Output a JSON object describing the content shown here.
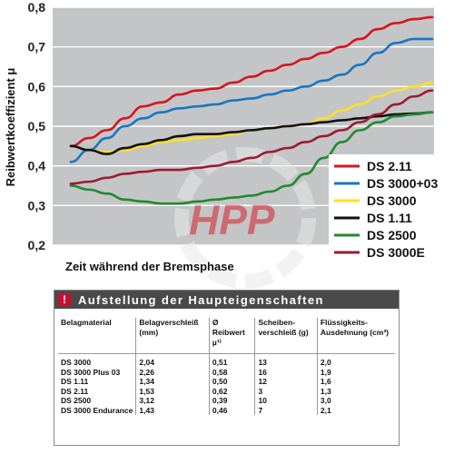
{
  "chart_data": {
    "type": "line",
    "title": "",
    "xlabel": "Zeit während der Bremsphase",
    "ylabel": "Reibwertkoeffizient μ",
    "ylim": [
      0.2,
      0.8
    ],
    "yticks": [
      "0,2",
      "0,3",
      "0,4",
      "0,5",
      "0,6",
      "0,7",
      "0,8"
    ],
    "x": [
      0,
      5,
      10,
      15,
      20,
      25,
      30,
      35,
      40,
      45,
      50,
      55,
      60,
      65,
      70,
      75,
      80,
      85,
      90,
      95,
      100
    ],
    "grid": "horizontal",
    "legend_position": "right",
    "series": [
      {
        "name": "DS 2.11",
        "color": "#d7141f",
        "values": [
          0.45,
          0.47,
          0.49,
          0.52,
          0.55,
          0.56,
          0.58,
          0.59,
          0.595,
          0.61,
          0.625,
          0.64,
          0.655,
          0.67,
          0.685,
          0.7,
          0.72,
          0.745,
          0.76,
          0.77,
          0.775
        ]
      },
      {
        "name": "DS 3000+03",
        "color": "#1a75c0",
        "values": [
          0.41,
          0.44,
          0.47,
          0.5,
          0.52,
          0.535,
          0.545,
          0.55,
          0.555,
          0.565,
          0.57,
          0.58,
          0.59,
          0.6,
          0.615,
          0.63,
          0.655,
          0.685,
          0.71,
          0.72,
          0.72
        ]
      },
      {
        "name": "DS 3000",
        "color": "#ffe020",
        "values": [
          0.45,
          0.44,
          0.435,
          0.44,
          0.45,
          0.46,
          0.465,
          0.47,
          0.475,
          0.48,
          0.49,
          0.495,
          0.5,
          0.505,
          0.52,
          0.54,
          0.555,
          0.575,
          0.59,
          0.6,
          0.61
        ]
      },
      {
        "name": "DS 1.11",
        "color": "#111111",
        "values": [
          0.45,
          0.44,
          0.43,
          0.445,
          0.455,
          0.465,
          0.475,
          0.48,
          0.48,
          0.485,
          0.49,
          0.495,
          0.5,
          0.505,
          0.51,
          0.515,
          0.52,
          0.525,
          0.53,
          0.532,
          0.535
        ]
      },
      {
        "name": "DS 2500",
        "color": "#1f8a2e",
        "values": [
          0.35,
          0.34,
          0.33,
          0.315,
          0.31,
          0.305,
          0.305,
          0.31,
          0.315,
          0.32,
          0.325,
          0.335,
          0.35,
          0.38,
          0.42,
          0.46,
          0.49,
          0.51,
          0.525,
          0.53,
          0.535
        ]
      },
      {
        "name": "DS 3000E",
        "color": "#9b1b30",
        "values": [
          0.355,
          0.36,
          0.37,
          0.38,
          0.385,
          0.39,
          0.39,
          0.395,
          0.4,
          0.41,
          0.42,
          0.435,
          0.445,
          0.46,
          0.475,
          0.49,
          0.51,
          0.53,
          0.555,
          0.575,
          0.59
        ]
      }
    ]
  },
  "watermark": {
    "text": "HPP",
    "color": "#d6202a"
  },
  "table": {
    "badge": "!",
    "title": "Aufstellung der Haupteigenschaften",
    "headers": [
      "Belagmaterial",
      "Belagverschleiß (mm)",
      "Ø Reibwert µ¹⁾",
      "Scheiben-verschleiß (g)",
      "Flüssigkeits-Ausdehnung (cm³)"
    ],
    "rows": [
      [
        "DS 3000",
        "2,04",
        "0,51",
        "13",
        "2,0"
      ],
      [
        "DS 3000 Plus 03",
        "2,26",
        "0,58",
        "16",
        "1,9"
      ],
      [
        "DS 1.11",
        "1,34",
        "0,50",
        "12",
        "1,6"
      ],
      [
        "DS 2.11",
        "1,53",
        "0,62",
        "3",
        "1,3"
      ],
      [
        "DS 2500",
        "3,12",
        "0,39",
        "10",
        "3,0"
      ],
      [
        "DS 3000 Endurance",
        "1,43",
        "0,46",
        "7",
        "2,1"
      ]
    ]
  }
}
